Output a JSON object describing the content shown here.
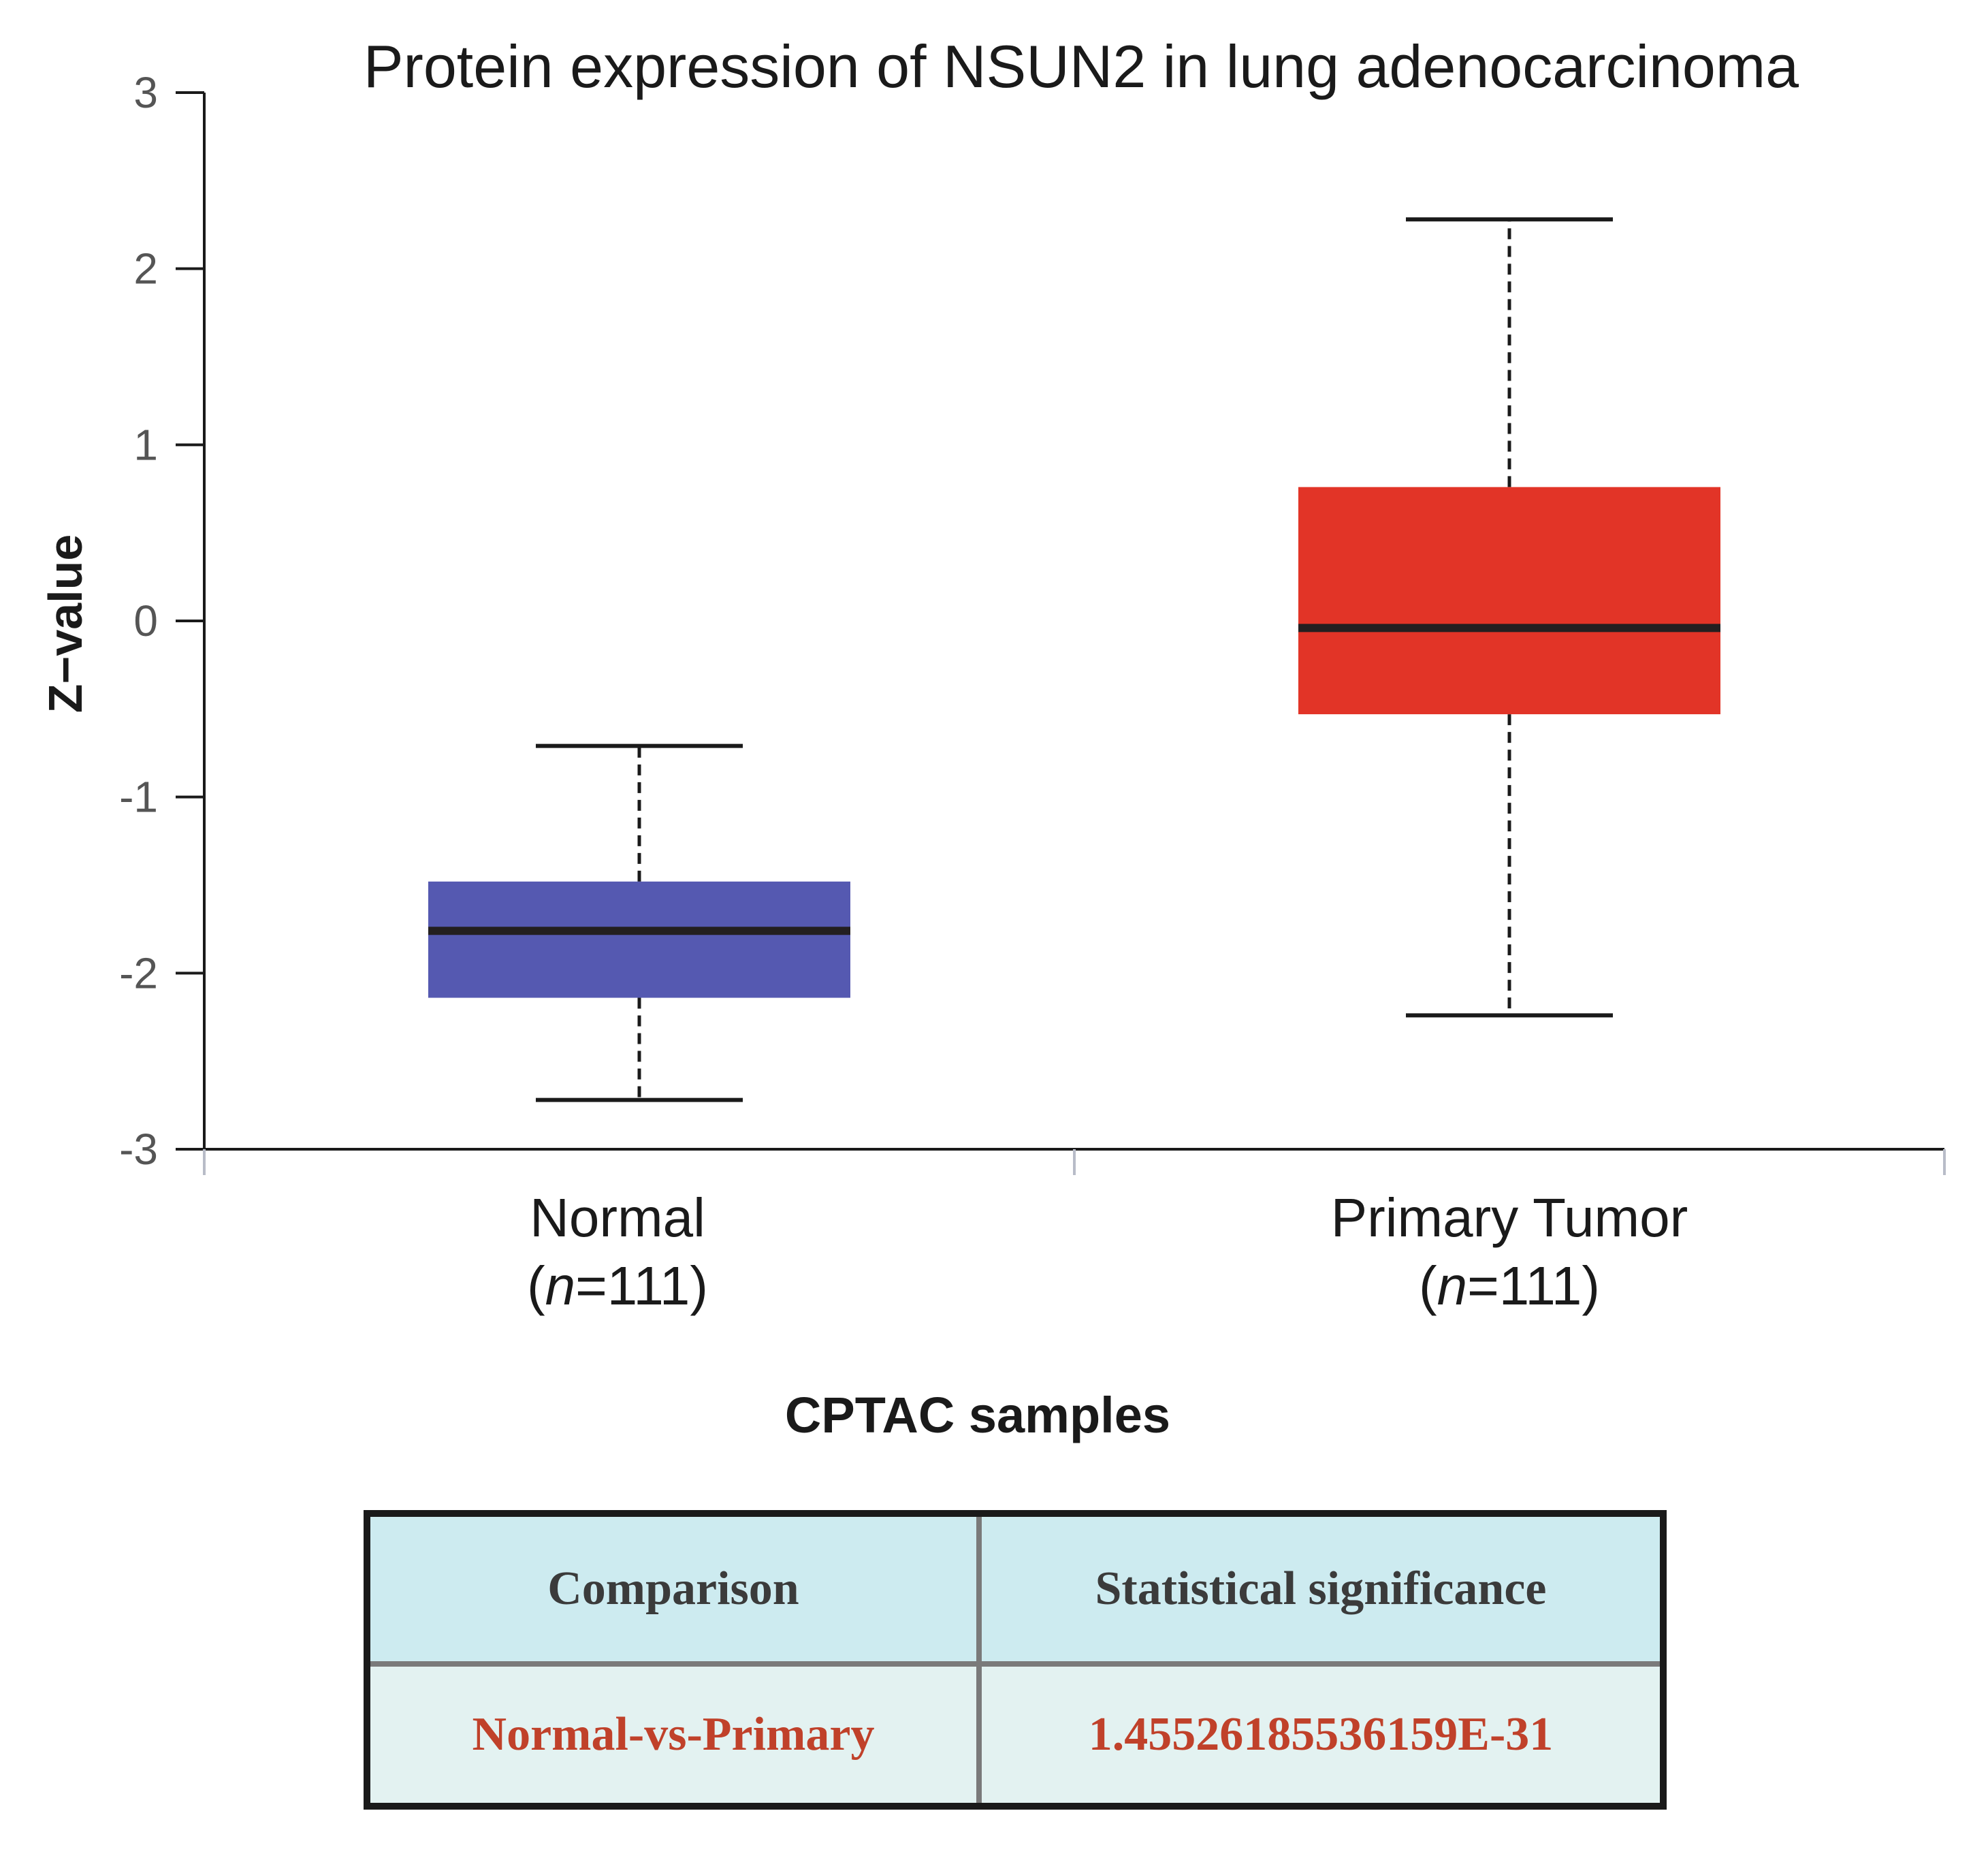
{
  "chart_data": {
    "type": "boxplot",
    "title": "Protein expression of NSUN2 in lung adenocarcinoma",
    "ylabel": "Z−value",
    "xlabel": "CPTAC samples",
    "ylim": [
      -3,
      3
    ],
    "yticks": [
      "-3",
      "-2",
      "-1",
      "0",
      "1",
      "2",
      "3"
    ],
    "categories": [
      {
        "name": "Normal",
        "n_prefix": "(",
        "n_italic": "n",
        "n_suffix": "=111)",
        "color": "#5559b1",
        "whisker_low": -2.72,
        "q1": -2.14,
        "median": -1.76,
        "q3": -1.48,
        "whisker_high": -0.71
      },
      {
        "name": "Primary Tumor",
        "n_prefix": "(",
        "n_italic": "n",
        "n_suffix": "=111)",
        "color": "#e23427",
        "whisker_low": -2.24,
        "q1": -0.53,
        "median": -0.04,
        "q3": 0.76,
        "whisker_high": 2.28
      }
    ]
  },
  "table": {
    "headers": [
      "Comparison",
      "Statistical significance"
    ],
    "rows": [
      [
        "Normal-vs-Primary",
        "1.45526185536159E-31"
      ]
    ]
  }
}
